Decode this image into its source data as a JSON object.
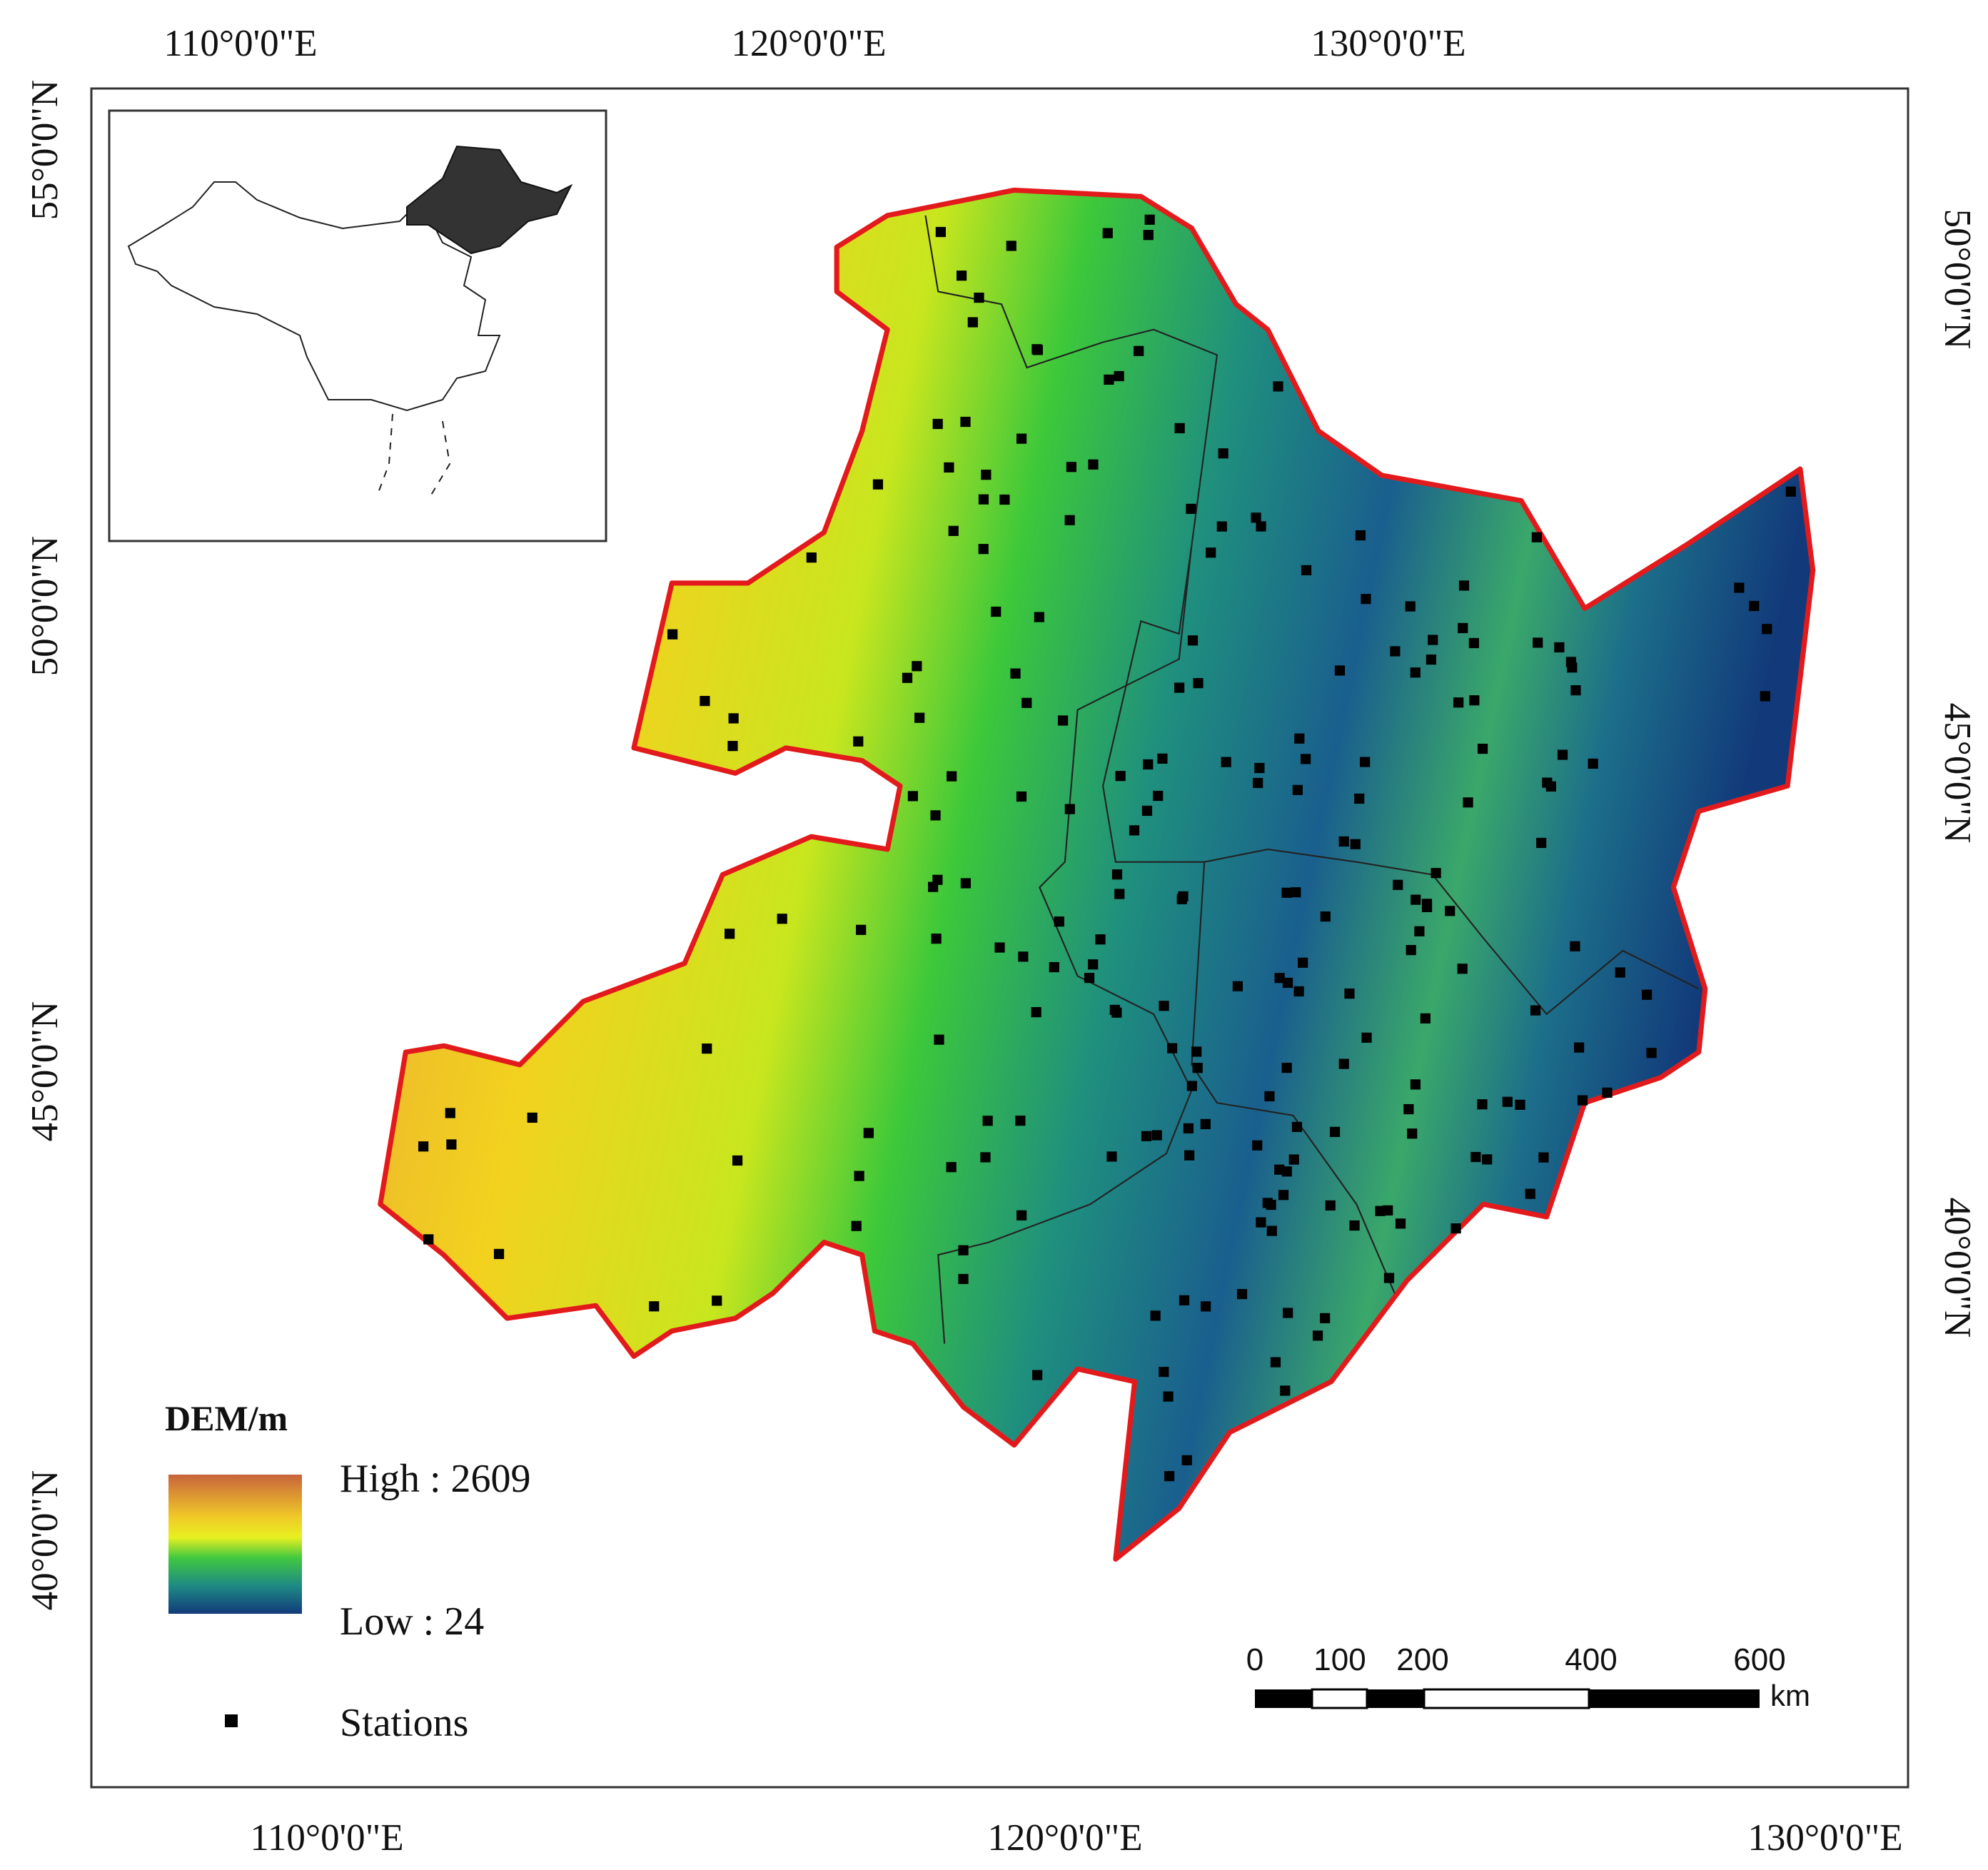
{
  "graticule": {
    "top": [
      "110°0'0\"E",
      "120°0'0\"E",
      "130°0'0\"E"
    ],
    "bottom": [
      "110°0'0\"E",
      "120°0'0\"E",
      "130°0'0\"E"
    ],
    "left": [
      "55°0'0\"N",
      "50°0'0\"N",
      "45°0'0\"N",
      "40°0'0\"N"
    ],
    "right": [
      "50°0'0\"N",
      "45°0'0\"N",
      "40°0'0\"N"
    ]
  },
  "legend": {
    "title": "DEM/m",
    "high": "High : 2609",
    "low": "Low : 24",
    "stations": "Stations"
  },
  "scale_bar": {
    "labels": [
      "0",
      "100",
      "200",
      "400",
      "600"
    ],
    "unit": "km"
  }
}
